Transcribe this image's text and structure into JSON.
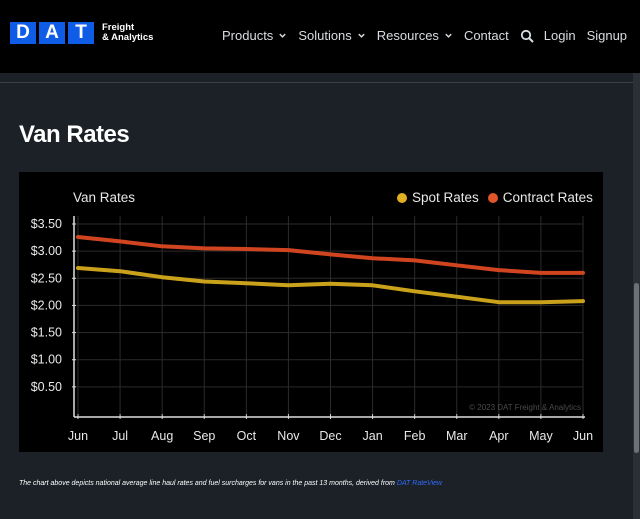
{
  "brand": {
    "logo_letters": [
      "D",
      "A",
      "T"
    ],
    "line1": "Freight",
    "line2": "& Analytics"
  },
  "nav": {
    "items": [
      {
        "label": "Products",
        "dropdown": true
      },
      {
        "label": "Solutions",
        "dropdown": true
      },
      {
        "label": "Resources",
        "dropdown": true
      },
      {
        "label": "Contact",
        "dropdown": false
      }
    ],
    "search_icon": "search-icon",
    "login": "Login",
    "signup": "Signup"
  },
  "page": {
    "title": "Van Rates"
  },
  "colors": {
    "spot": "#c9a11a",
    "contract": "#d0451f",
    "brand": "#0f5ce6"
  },
  "chart_data": {
    "type": "line",
    "title": "Van Rates",
    "categories": [
      "Jun",
      "Jul",
      "Aug",
      "Sep",
      "Oct",
      "Nov",
      "Dec",
      "Jan",
      "Feb",
      "Mar",
      "Apr",
      "May",
      "Jun"
    ],
    "series": [
      {
        "name": "Spot Rates",
        "values": [
          2.69,
          2.63,
          2.52,
          2.44,
          2.41,
          2.37,
          2.4,
          2.37,
          2.26,
          2.16,
          2.06,
          2.06,
          2.08
        ]
      },
      {
        "name": "Contract Rates",
        "values": [
          3.26,
          3.18,
          3.09,
          3.05,
          3.04,
          3.02,
          2.94,
          2.87,
          2.83,
          2.74,
          2.65,
          2.6,
          2.6
        ]
      }
    ],
    "y_ticks": [
      "$3.50",
      "$3.00",
      "$2.50",
      "$2.00",
      "$1.50",
      "$1.00",
      "$0.50"
    ],
    "ylim": [
      0,
      3.5
    ],
    "legend": "top-right",
    "grid": true,
    "watermark": "© 2023 DAT Freight & Analytics"
  },
  "caption": {
    "text": "The chart above depicts national average line haul rates and fuel surcharges for vans in the past 13 months, derived from ",
    "link": "DAT RateView"
  }
}
